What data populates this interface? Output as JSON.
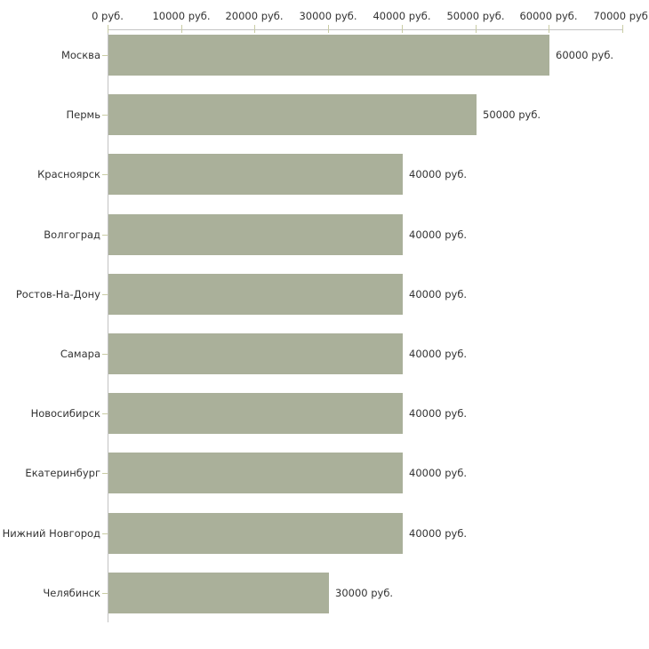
{
  "chart_data": {
    "type": "bar",
    "orientation": "horizontal",
    "title": "",
    "xlabel": "",
    "ylabel": "",
    "categories": [
      "Москва",
      "Пермь",
      "Красноярск",
      "Волгоград",
      "Ростов-На-Дону",
      "Самара",
      "Новосибирск",
      "Екатеринбург",
      "Нижний Новгород",
      "Челябинск"
    ],
    "values": [
      60000,
      50000,
      40000,
      40000,
      40000,
      40000,
      40000,
      40000,
      40000,
      30000
    ],
    "value_labels": [
      "60000 руб.",
      "50000 руб.",
      "40000 руб.",
      "40000 руб.",
      "40000 руб.",
      "40000 руб.",
      "40000 руб.",
      "40000 руб.",
      "40000 руб.",
      "30000 руб."
    ],
    "x_ticks": [
      0,
      10000,
      20000,
      30000,
      40000,
      50000,
      60000,
      70000
    ],
    "x_tick_labels": [
      "0 руб.",
      "10000 руб.",
      "20000 руб.",
      "30000 руб.",
      "40000 руб.",
      "50000 руб.",
      "60000 руб.",
      "70000 руб."
    ],
    "xlim": [
      0,
      70000
    ],
    "grid": false,
    "legend": false,
    "bar_color": "#aab09a",
    "axis_line_color": "#c3c3c3",
    "tick_mark_color": "#c9cca4",
    "text_color": "#333333",
    "background_color": "#ffffff"
  }
}
